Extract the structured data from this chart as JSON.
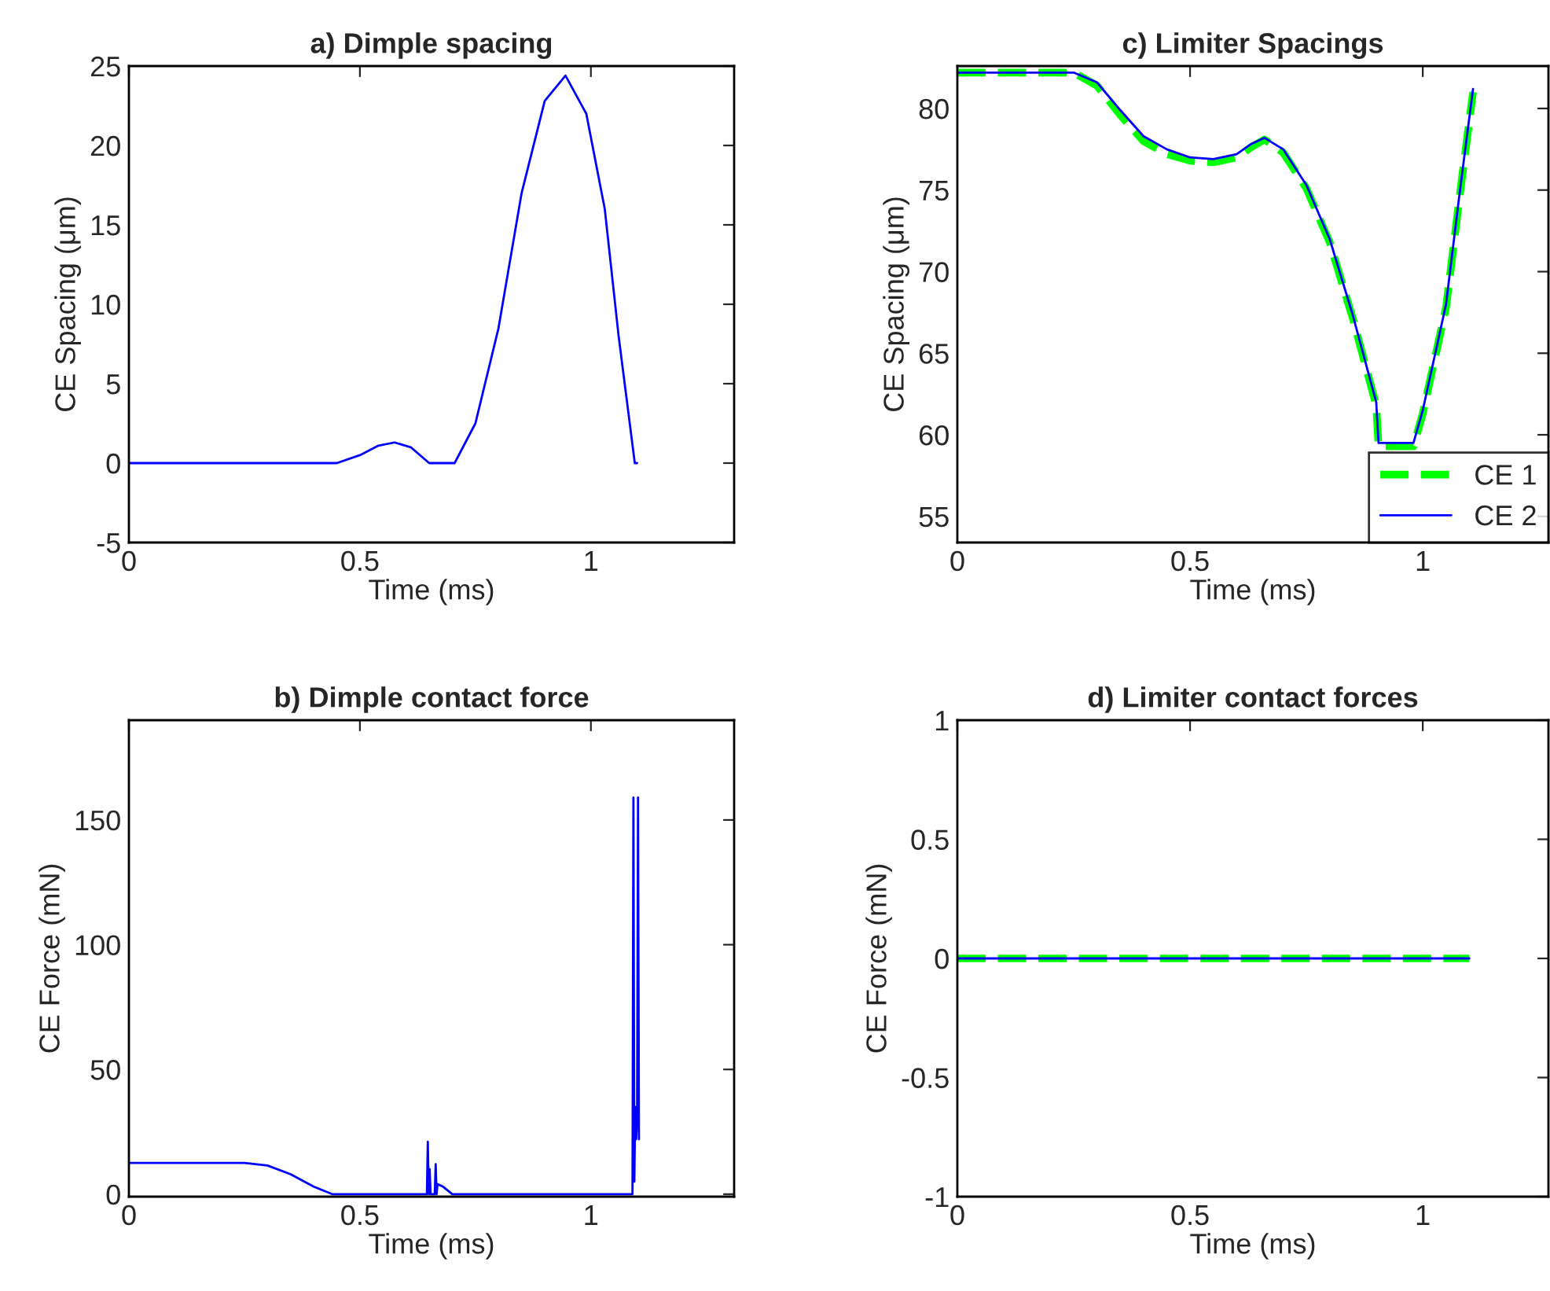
{
  "chart_data": [
    {
      "type": "line",
      "title": "a) Dimple spacing",
      "xlabel": "Time (ms)",
      "ylabel": "CE Spacing (μm)",
      "xlim": [
        0,
        1.31
      ],
      "xticks": [
        0,
        0.5,
        1
      ],
      "ylim": [
        -5,
        25
      ],
      "yticks": [
        -5,
        0,
        5,
        10,
        15,
        20,
        25
      ],
      "grid": false,
      "legend": false,
      "series": [
        {
          "color": "#0000ff",
          "line_style": "solid",
          "x": [
            0,
            0.45,
            0.5,
            0.54,
            0.575,
            0.61,
            0.65,
            0.705,
            0.75,
            0.8,
            0.85,
            0.9,
            0.945,
            0.99,
            1.03,
            1.06,
            1.095,
            1.1
          ],
          "values": [
            0,
            0,
            0.5,
            1.1,
            1.3,
            1.0,
            0,
            0,
            2.5,
            8.5,
            17,
            22.8,
            24.4,
            22,
            16,
            8,
            0,
            0
          ]
        }
      ]
    },
    {
      "type": "line",
      "title": "c) Limiter Spacings",
      "xlabel": "Time (ms)",
      "ylabel": "CE Spacing (μm)",
      "xlim": [
        0,
        1.27
      ],
      "xticks": [
        0,
        0.5,
        1
      ],
      "ylim": [
        53.4,
        82.6
      ],
      "yticks": [
        55,
        60,
        65,
        70,
        75,
        80
      ],
      "grid": false,
      "legend": "bottom right",
      "series": [
        {
          "name": "CE 1",
          "color": "#00ff00",
          "line_style": "dashed",
          "x": [
            0,
            0.25,
            0.3,
            0.35,
            0.4,
            0.45,
            0.5,
            0.55,
            0.6,
            0.63,
            0.66,
            0.7,
            0.75,
            0.8,
            0.85,
            0.9,
            0.905,
            0.98,
            1.0,
            1.05,
            1.08,
            1.108
          ],
          "values": [
            82.2,
            82.2,
            81.4,
            79.6,
            78.0,
            77.2,
            76.8,
            76.7,
            77.0,
            77.6,
            78.1,
            77.3,
            75.1,
            71.8,
            67.1,
            61.8,
            59.3,
            59.3,
            61.3,
            67.8,
            74.8,
            81.0
          ]
        },
        {
          "name": "CE 2",
          "color": "#0000ff",
          "line_style": "solid",
          "x": [
            0,
            0.25,
            0.3,
            0.35,
            0.4,
            0.45,
            0.5,
            0.55,
            0.6,
            0.63,
            0.66,
            0.7,
            0.75,
            0.8,
            0.85,
            0.9,
            0.905,
            0.98,
            1.0,
            1.05,
            1.08,
            1.108
          ],
          "values": [
            82.2,
            82.2,
            81.6,
            79.9,
            78.3,
            77.5,
            77.0,
            76.9,
            77.2,
            77.8,
            78.2,
            77.5,
            75.3,
            72.0,
            67.3,
            62.0,
            59.5,
            59.5,
            61.5,
            68.0,
            75.0,
            81.2
          ]
        }
      ]
    },
    {
      "type": "line",
      "title": "b) Dimple contact force",
      "xlabel": "Time (ms)",
      "ylabel": "CE Force (mN)",
      "xlim": [
        0,
        1.31
      ],
      "xticks": [
        0,
        0.5,
        1
      ],
      "ylim": [
        -1,
        190
      ],
      "yticks": [
        0,
        50,
        100,
        150
      ],
      "grid": false,
      "legend": false,
      "series": [
        {
          "color": "#0000ff",
          "line_style": "solid",
          "x": [
            0,
            0.25,
            0.3,
            0.35,
            0.4,
            0.44,
            0.645,
            0.647,
            0.649,
            0.651,
            0.653,
            0.655,
            0.662,
            0.664,
            0.666,
            0.668,
            0.68,
            0.7,
            1.09,
            1.092,
            1.094,
            1.096,
            1.098,
            1.1,
            1.102,
            1.104
          ],
          "values": [
            12.5,
            12.5,
            11.5,
            8,
            3,
            0,
            0,
            21,
            0,
            10,
            0,
            0,
            0,
            12,
            0,
            4,
            3,
            0,
            0,
            159,
            5,
            35,
            22,
            30,
            159,
            22
          ]
        }
      ]
    },
    {
      "type": "line",
      "title": "d) Limiter contact forces",
      "xlabel": "Time (ms)",
      "ylabel": "CE Force (mN)",
      "xlim": [
        0,
        1.27
      ],
      "xticks": [
        0,
        0.5,
        1
      ],
      "ylim": [
        -1,
        1
      ],
      "yticks": [
        -1,
        -0.5,
        0,
        0.5,
        1
      ],
      "grid": false,
      "legend": false,
      "series": [
        {
          "color": "#00ff00",
          "line_style": "dashed",
          "x": [
            0,
            1.1
          ],
          "values": [
            0,
            0
          ]
        },
        {
          "color": "#0000ff",
          "line_style": "solid",
          "x": [
            0,
            1.1
          ],
          "values": [
            0,
            0
          ]
        }
      ]
    }
  ]
}
